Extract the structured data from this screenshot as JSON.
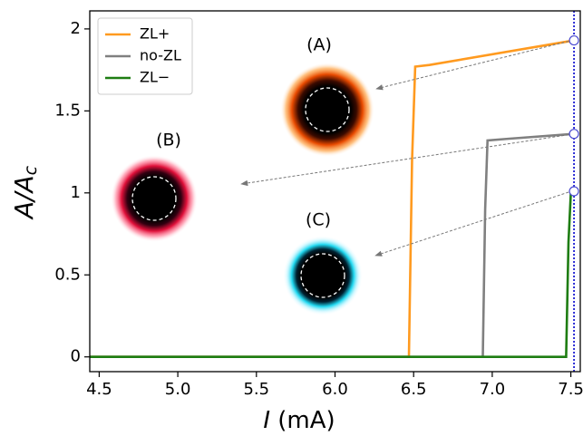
{
  "chart_data": {
    "type": "line",
    "xlabel": [
      "I",
      "(mA)"
    ],
    "ylabel": [
      "A/A",
      "c"
    ],
    "xlim": [
      4.44,
      7.56
    ],
    "ylim": [
      -0.09,
      2.11
    ],
    "xticks": [
      4.5,
      {
        "value": 5,
        "label": "5.0"
      },
      5.5,
      {
        "value": 6,
        "label": "6.0"
      },
      6.5,
      {
        "value": 7,
        "label": "7.0"
      },
      7.5
    ],
    "yticks": [
      0,
      0.5,
      1,
      1.5,
      2
    ],
    "legend": "upper left",
    "series": [
      {
        "name": "ZL+",
        "color": "#ff9a1f",
        "x": [
          4.44,
          6.47,
          6.49,
          6.51,
          6.6,
          7.52
        ],
        "values": [
          0,
          0,
          1.2,
          1.77,
          1.78,
          1.93
        ]
      },
      {
        "name": "no-ZL",
        "color": "#808080",
        "x": [
          4.44,
          6.94,
          6.955,
          6.97,
          7.1,
          7.52
        ],
        "values": [
          0,
          0,
          0.9,
          1.32,
          1.33,
          1.36
        ]
      },
      {
        "name": "ZL−",
        "color": "#1e7d12",
        "x": [
          4.44,
          7.47,
          7.485,
          7.5,
          7.52
        ],
        "values": [
          0,
          0,
          0.7,
          1.0,
          1.01
        ]
      }
    ],
    "marker_x": 7.52,
    "annotations": [
      "(A)",
      "(B)",
      "(C)"
    ]
  }
}
